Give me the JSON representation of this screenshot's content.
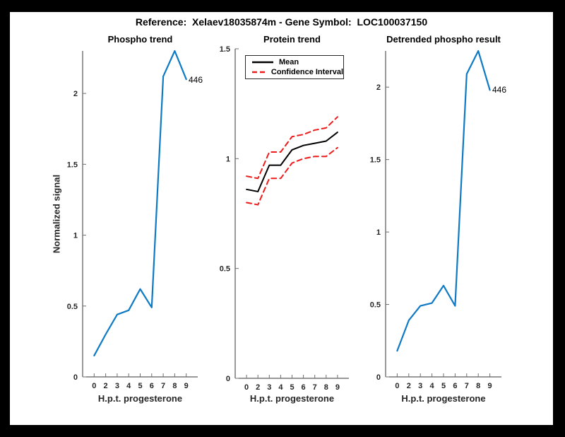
{
  "figure": {
    "title": "Reference:  Xelaev18035874m - Gene Symbol:  LOC100037150",
    "background": "#ffffff",
    "frame_color": "#000000"
  },
  "colors": {
    "line_blue": "#0f7ac4",
    "ci_red": "#ee1b1b",
    "mean_black": "#000000",
    "axis_gray": "#333333"
  },
  "chart_data": [
    {
      "type": "line",
      "title": "Phospho trend",
      "xlabel": "H.p.t. progesterone",
      "ylabel": "Normalized signal",
      "categories": [
        "0",
        "2",
        "3",
        "4",
        "5",
        "6",
        "7",
        "8",
        "9"
      ],
      "series": [
        {
          "name": "phospho-signal",
          "color": "#0f7ac4",
          "dash": false,
          "width": 2.2,
          "values": [
            0.15,
            0.3,
            0.44,
            0.47,
            0.62,
            0.49,
            2.12,
            2.3,
            2.1
          ]
        }
      ],
      "ylim": [
        0,
        2.3
      ],
      "yticks": [
        0,
        0.5,
        1,
        1.5,
        2
      ],
      "ytick_labels": [
        "0",
        "0.5",
        "1",
        "1.5",
        "2"
      ],
      "grid": false,
      "end_label": "446"
    },
    {
      "type": "line",
      "title": "Protein trend",
      "xlabel": "H.p.t. progesterone",
      "ylabel": "",
      "categories": [
        "0",
        "2",
        "3",
        "4",
        "5",
        "6",
        "7",
        "8",
        "9"
      ],
      "series": [
        {
          "name": "confidence-interval-upper",
          "color": "#ee1b1b",
          "dash": true,
          "width": 2,
          "values": [
            0.92,
            0.91,
            1.03,
            1.03,
            1.1,
            1.11,
            1.13,
            1.14,
            1.19
          ]
        },
        {
          "name": "confidence-interval-lower",
          "color": "#ee1b1b",
          "dash": true,
          "width": 2,
          "values": [
            0.8,
            0.79,
            0.91,
            0.91,
            0.98,
            1.0,
            1.01,
            1.01,
            1.05
          ]
        },
        {
          "name": "mean",
          "color": "#000000",
          "dash": false,
          "width": 2,
          "values": [
            0.86,
            0.85,
            0.97,
            0.97,
            1.04,
            1.06,
            1.07,
            1.08,
            1.12
          ]
        }
      ],
      "ylim": [
        0,
        1.5
      ],
      "yticks": [
        0,
        0.5,
        1,
        1.5
      ],
      "ytick_labels": [
        "0",
        "0.5",
        "1",
        "1.5"
      ],
      "grid": false,
      "legend": {
        "position": "northwest",
        "entries": [
          {
            "label": "Mean",
            "color": "#000000",
            "dash": false
          },
          {
            "label": "Confidence Interval",
            "color": "#ee1b1b",
            "dash": true
          }
        ]
      },
      "end_label": ""
    },
    {
      "type": "line",
      "title": "Detrended phospho result",
      "xlabel": "H.p.t. progesterone",
      "ylabel": "",
      "categories": [
        "0",
        "2",
        "3",
        "4",
        "5",
        "6",
        "7",
        "8",
        "9"
      ],
      "series": [
        {
          "name": "detrended-phospho",
          "color": "#0f7ac4",
          "dash": false,
          "width": 2.2,
          "values": [
            0.18,
            0.39,
            0.49,
            0.51,
            0.63,
            0.49,
            2.09,
            2.25,
            1.98
          ]
        }
      ],
      "ylim": [
        0,
        2.25
      ],
      "yticks": [
        0,
        0.5,
        1,
        1.5,
        2
      ],
      "ytick_labels": [
        "0",
        "0.5",
        "1",
        "1.5",
        "2"
      ],
      "grid": false,
      "end_label": "446"
    }
  ]
}
